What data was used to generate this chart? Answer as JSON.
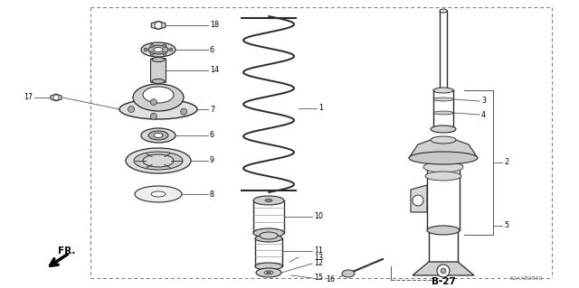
{
  "bg_color": "#ffffff",
  "dc": "#2a2a2a",
  "lc": "#555555",
  "watermark": "S2AAB2800",
  "page_ref": "B-27",
  "figsize": [
    6.4,
    3.19
  ],
  "dpi": 100
}
